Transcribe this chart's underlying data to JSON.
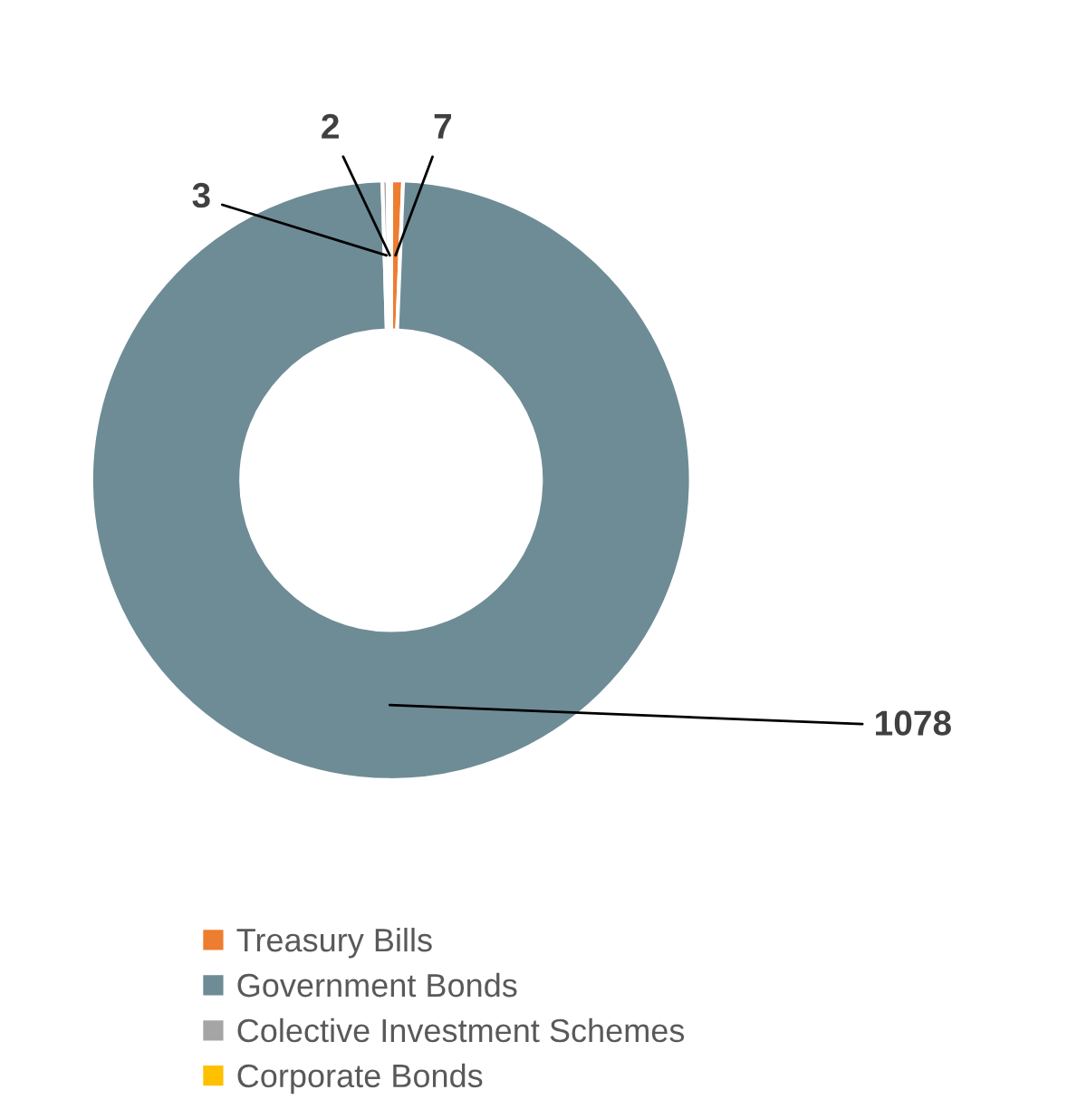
{
  "chart_data": {
    "type": "donut",
    "categories": [
      "Treasury Bills",
      "Government Bonds",
      "Colective Investment Schemes",
      "Corporate Bonds"
    ],
    "values": [
      7,
      1078,
      3,
      2
    ],
    "colors": [
      "#ed7d31",
      "#6e8c96",
      "#a5a5a5",
      "#ffc000"
    ],
    "data_labels": true,
    "legend": "bottom"
  }
}
